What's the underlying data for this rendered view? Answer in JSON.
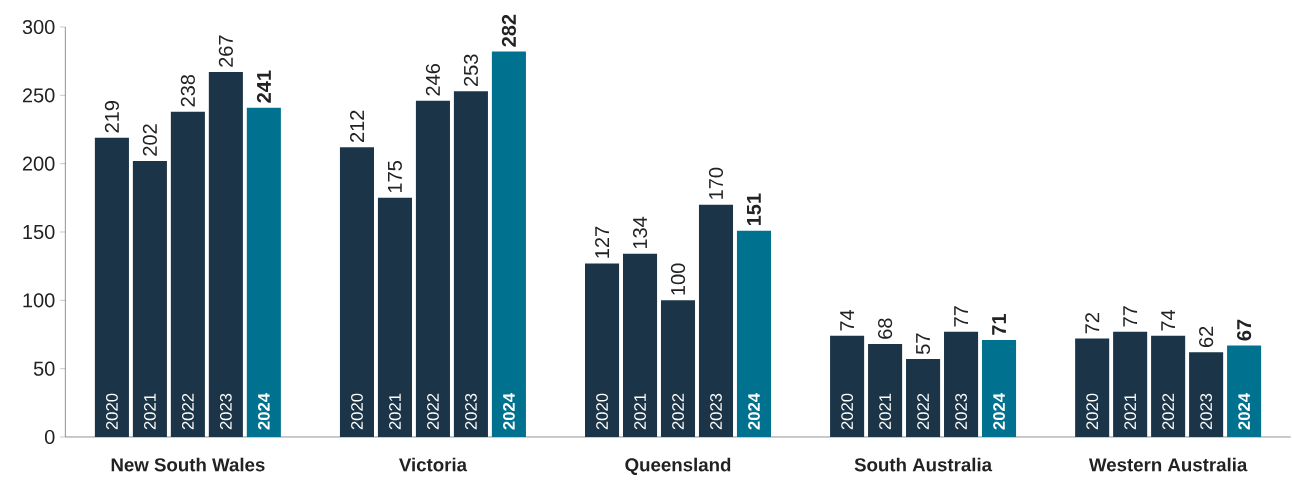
{
  "chart_data": {
    "type": "bar",
    "categories": [
      "New South Wales",
      "Victoria",
      "Queensland",
      "South Australia",
      "Western Australia"
    ],
    "series": [
      {
        "name": "2020",
        "color": "#1b3447",
        "values": [
          219,
          212,
          127,
          74,
          72
        ],
        "value_labels": [
          "219",
          "212",
          "127",
          "74",
          "72"
        ]
      },
      {
        "name": "2021",
        "color": "#1b3447",
        "values": [
          202,
          175,
          134,
          68,
          77
        ],
        "value_labels": [
          "202",
          "175",
          "134",
          "68",
          "77"
        ]
      },
      {
        "name": "2022",
        "color": "#1b3447",
        "values": [
          238,
          246,
          100,
          57,
          74
        ],
        "value_labels": [
          "238",
          "246",
          "100",
          "57",
          "74"
        ]
      },
      {
        "name": "2023",
        "color": "#1b3447",
        "values": [
          267,
          253,
          170,
          77,
          62
        ],
        "value_labels": [
          "267",
          "253",
          "170",
          "77",
          "62"
        ]
      },
      {
        "name": "**2024**",
        "color": "#00728f",
        "values": [
          241,
          282,
          151,
          71,
          67
        ],
        "value_labels": [
          "**241**",
          "**282**",
          "**151**",
          "**71**",
          "**67**"
        ]
      }
    ],
    "ylim": [
      0,
      300
    ],
    "yticks": [
      0,
      50,
      100,
      150,
      200,
      250,
      300
    ]
  }
}
